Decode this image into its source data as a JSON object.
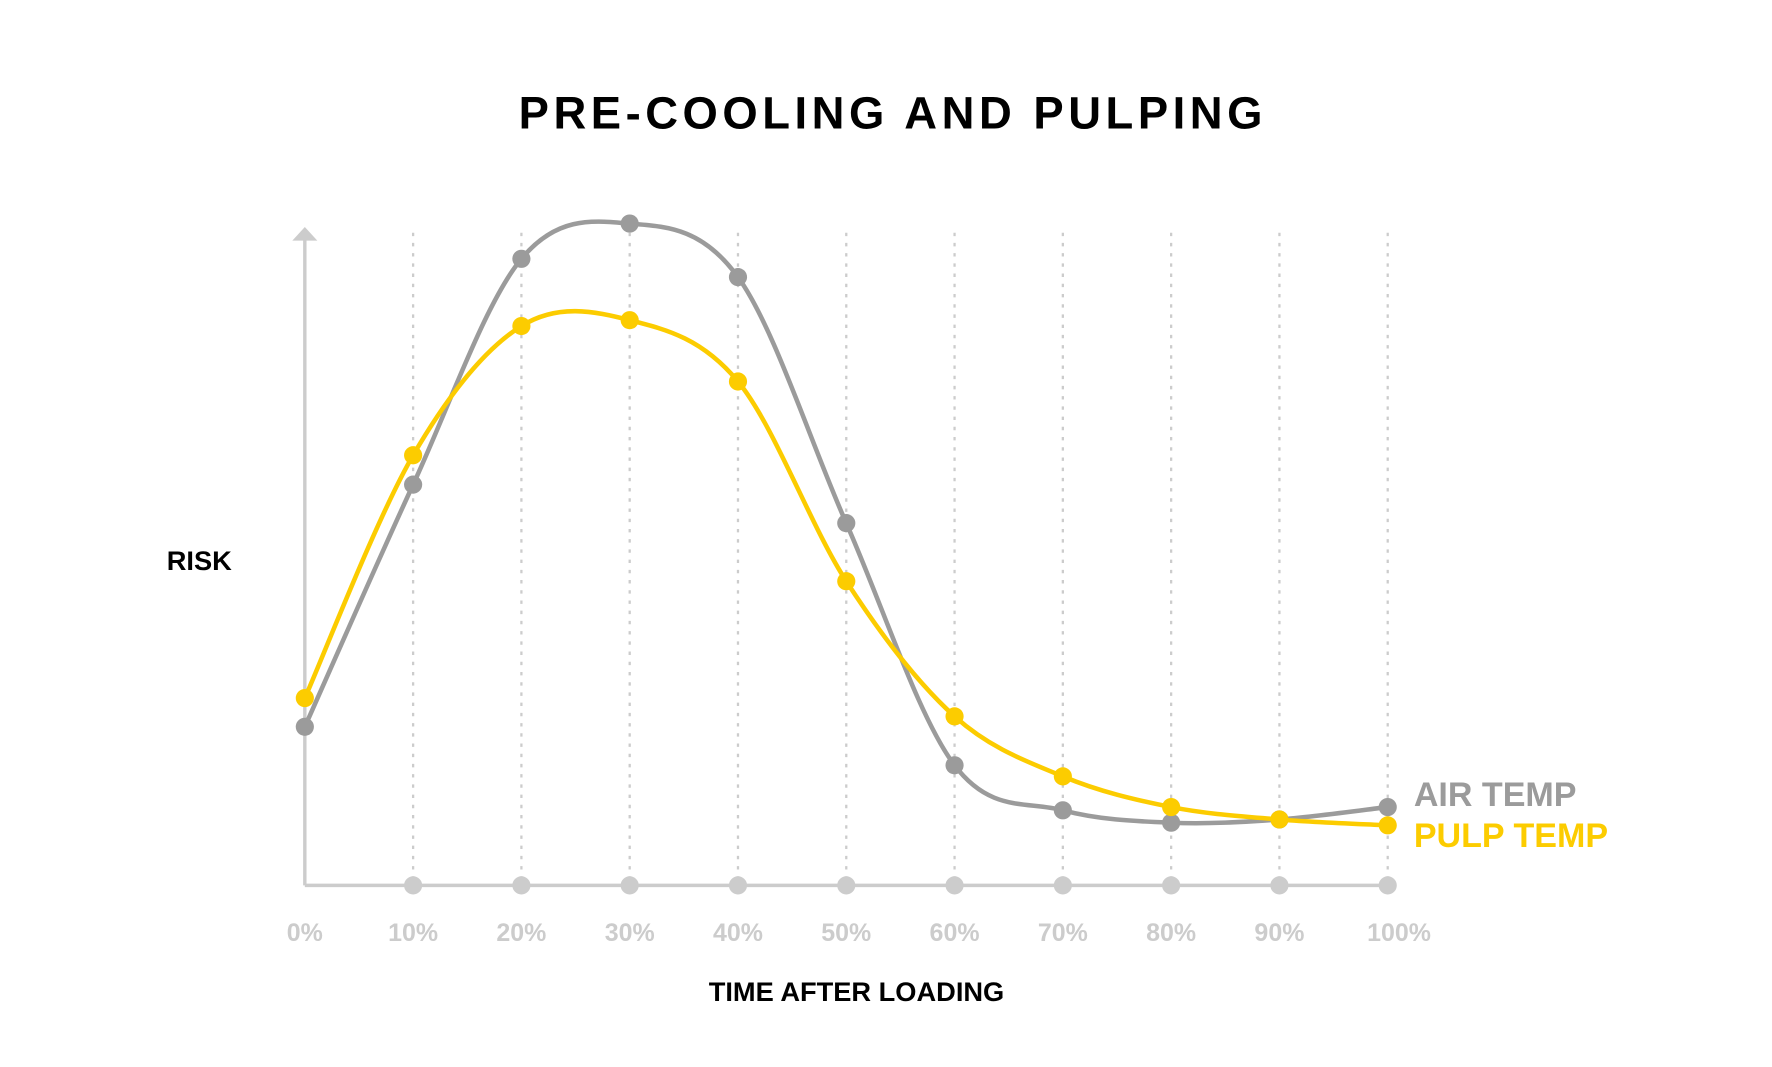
{
  "chart_data": {
    "type": "line",
    "title": "PRE-COOLING AND PULPING",
    "xlabel": "TIME AFTER LOADING",
    "ylabel": "RISK",
    "categories": [
      "0%",
      "10%",
      "20%",
      "30%",
      "40%",
      "50%",
      "60%",
      "70%",
      "80%",
      "90%",
      "100%"
    ],
    "ylim": [
      0,
      100
    ],
    "grid": "vertical dotted",
    "legend": "right, at line ends",
    "series": [
      {
        "name": "AIR TEMP",
        "color": "#9b9b9b",
        "values": [
          24.3,
          61.4,
          96.0,
          101.4,
          93.2,
          55.5,
          18.4,
          11.5,
          9.6,
          10.1,
          12.0
        ]
      },
      {
        "name": "PULP TEMP",
        "color": "#fccc00",
        "values": [
          28.7,
          65.9,
          85.7,
          86.6,
          77.2,
          46.6,
          25.9,
          16.7,
          12.0,
          10.1,
          9.2
        ]
      }
    ],
    "axis_color": "#cccccc"
  }
}
